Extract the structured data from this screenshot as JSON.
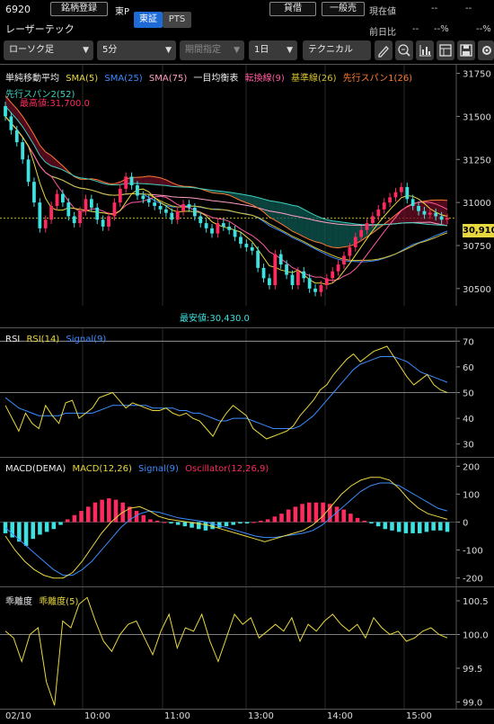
{
  "header": {
    "code": "6920",
    "register_label": "銘柄登録",
    "market_top": "東P",
    "name": "レーザーテック",
    "market_tab_active": "東証",
    "market_tab_other": "PTS",
    "lending_label": "貸借",
    "general_label": "一般売",
    "current_label": "現在値",
    "current_value": "--",
    "current_value2": "--",
    "change_label": "前日比",
    "change_value": "--",
    "change_pct": "--%",
    "change_pct2": "--%"
  },
  "toolbar": {
    "chart_type": "ローソク足",
    "interval": "5分",
    "period_placeholder": "期間指定",
    "range": "1日",
    "technical": "テクニカル"
  },
  "colors": {
    "up": "#ff2b5e",
    "down": "#3ee0e0",
    "sma5": "#e8d840",
    "sma25": "#3c8cff",
    "sma75": "#ff9fc4",
    "tenkan": "#ff5aa0",
    "kijun": "#d4c030",
    "spanA": "#ff7a30",
    "spanB": "#40d0c0",
    "cloud_bull": "#6b0e26",
    "cloud_bear": "#0e5a52",
    "rsi": "#e8d840",
    "signal": "#3c8cff",
    "osc_pos": "#ff2b5e",
    "osc_neg": "#3ee0e0"
  },
  "main_panel": {
    "legend": {
      "title": "単純移動平均",
      "sma5": "SMA(5)",
      "sma25": "SMA(25)",
      "sma75": "SMA(75)",
      "ichimoku": "一目均衡表",
      "tenkan": "転換線(9)",
      "kijun": "基準線(26)",
      "spanA": "先行スパン1(26)",
      "spanB": "先行スパン2(52)"
    },
    "high_label": "最高値:31,700.0",
    "low_label": "最安値:30,430.0",
    "last_price": "30,910",
    "y_ticks": [
      "31750",
      "31500",
      "31250",
      "31000",
      "30750",
      "30500"
    ]
  },
  "rsi_panel": {
    "title": "RSI",
    "rsi": "RSI(14)",
    "signal": "Signal(9)",
    "y_ticks": [
      "70",
      "60",
      "50",
      "40",
      "30"
    ]
  },
  "macd_panel": {
    "title": "MACD(DEMA)",
    "macd": "MACD(12,26)",
    "signal": "Signal(9)",
    "osc": "Oscillator(12,26,9)",
    "y_ticks": [
      "200",
      "100",
      "0",
      "-100",
      "-200"
    ]
  },
  "dev_panel": {
    "title": "乖離度",
    "line": "乖離度(5)",
    "y_ticks": [
      "100.5",
      "100.0",
      "99.5",
      "99.0"
    ]
  },
  "x_axis": {
    "labels": [
      "02/10",
      "10:00",
      "11:00",
      "13:00",
      "14:00",
      "15:00"
    ]
  },
  "chart_data": [
    {
      "type": "candlestick",
      "title": "",
      "indicators": [
        "SMA(5)",
        "SMA(25)",
        "SMA(75)",
        "一目均衡表"
      ],
      "x_labels": [
        "02/10",
        "10:00",
        "11:00",
        "13:00",
        "14:00",
        "15:00"
      ],
      "ylim": [
        30400,
        31800
      ],
      "high": 31700,
      "low": 30430,
      "last": 30910,
      "close": [
        31500,
        31420,
        31350,
        31250,
        31120,
        31000,
        30850,
        30900,
        30980,
        31050,
        31000,
        30920,
        30880,
        30950,
        31020,
        30970,
        30900,
        30860,
        30920,
        31000,
        31080,
        31150,
        31100,
        31040,
        31020,
        31000,
        30980,
        30960,
        30940,
        30900,
        30950,
        30990,
        30970,
        30920,
        30880,
        30850,
        30820,
        30880,
        30860,
        30840,
        30800,
        30760,
        30740,
        30720,
        30620,
        30560,
        30520,
        30700,
        30640,
        30580,
        30520,
        30600,
        30560,
        30500,
        30480,
        30520,
        30560,
        30600,
        30640,
        30690,
        30740,
        30800,
        30840,
        30880,
        30920,
        30960,
        31000,
        31030,
        31060,
        31090,
        31020,
        30980,
        30950,
        30930,
        30940,
        30920,
        30900,
        30910
      ]
    },
    {
      "type": "line",
      "title": "",
      "series": [
        {
          "name": "RSI(14)"
        },
        {
          "name": "Signal(9)"
        }
      ],
      "ylim": [
        25,
        75
      ],
      "reference_lines": [
        70,
        50
      ],
      "rsi": [
        45,
        40,
        35,
        42,
        38,
        36,
        45,
        41,
        38,
        46,
        47,
        40,
        42,
        44,
        48,
        49,
        50,
        47,
        44,
        46,
        45,
        44,
        43,
        43,
        44,
        42,
        41,
        42,
        40,
        39,
        36,
        33,
        38,
        42,
        45,
        43,
        41,
        36,
        34,
        32,
        33,
        34,
        35,
        37,
        41,
        44,
        47,
        51,
        53,
        57,
        60,
        63,
        65,
        62,
        64,
        66,
        67,
        68,
        64,
        60,
        56,
        53,
        55,
        57,
        53,
        51,
        50
      ],
      "signal": [
        48,
        46,
        44,
        43,
        42,
        41,
        41,
        41,
        41,
        42,
        42,
        42,
        42,
        42,
        43,
        44,
        45,
        45,
        45,
        45,
        45,
        45,
        44,
        44,
        44,
        44,
        43,
        43,
        42,
        42,
        41,
        40,
        39,
        39,
        40,
        40,
        40,
        39,
        38,
        37,
        36,
        36,
        36,
        36,
        37,
        39,
        41,
        44,
        47,
        50,
        53,
        56,
        59,
        61,
        62,
        63,
        64,
        64,
        64,
        63,
        62,
        60,
        58,
        57,
        56,
        55,
        54
      ]
    },
    {
      "type": "bar",
      "title": "",
      "series": [
        {
          "name": "MACD(12,26)"
        },
        {
          "name": "Signal(9)"
        },
        {
          "name": "Oscillator(12,26,9)"
        }
      ],
      "ylim": [
        -230,
        230
      ],
      "oscillator": [
        -40,
        -55,
        -70,
        -85,
        -60,
        -45,
        -35,
        -25,
        -10,
        10,
        25,
        40,
        55,
        70,
        80,
        85,
        80,
        70,
        55,
        40,
        25,
        10,
        5,
        0,
        -5,
        -10,
        -15,
        -20,
        -25,
        -30,
        -25,
        -20,
        -15,
        -10,
        -5,
        -5,
        0,
        5,
        10,
        20,
        30,
        45,
        55,
        65,
        70,
        70,
        70,
        65,
        55,
        45,
        30,
        15,
        5,
        -5,
        -15,
        -25,
        -30,
        -35,
        -40,
        -40,
        -40,
        -35,
        -30,
        -30,
        -35
      ],
      "macd": [
        -50,
        -100,
        -140,
        -170,
        -190,
        -200,
        -200,
        -180,
        -140,
        -90,
        -40,
        0,
        30,
        50,
        55,
        40,
        20,
        10,
        5,
        0,
        -5,
        -10,
        -20,
        -30,
        -40,
        -50,
        -60,
        -70,
        -60,
        -50,
        -40,
        -30,
        -10,
        20,
        60,
        100,
        130,
        150,
        160,
        160,
        150,
        120,
        80,
        50,
        30,
        20,
        10
      ],
      "signal": [
        -20,
        -50,
        -80,
        -110,
        -140,
        -170,
        -190,
        -190,
        -170,
        -140,
        -100,
        -60,
        -20,
        10,
        30,
        40,
        35,
        25,
        15,
        10,
        5,
        0,
        -10,
        -20,
        -30,
        -40,
        -50,
        -55,
        -55,
        -50,
        -45,
        -40,
        -30,
        -10,
        20,
        50,
        80,
        110,
        130,
        140,
        140,
        130,
        110,
        90,
        70,
        50,
        40
      ]
    },
    {
      "type": "line",
      "title": "",
      "series": [
        {
          "name": "乖離度(5)"
        }
      ],
      "ylim": [
        98.9,
        100.7
      ],
      "reference_lines": [
        100.0
      ],
      "values": [
        100.05,
        99.95,
        99.6,
        100.0,
        100.1,
        99.3,
        98.95,
        100.2,
        100.1,
        100.45,
        100.55,
        100.2,
        99.9,
        99.75,
        100.0,
        100.15,
        100.2,
        99.95,
        99.7,
        100.05,
        100.3,
        99.8,
        100.1,
        100.05,
        100.3,
        99.9,
        99.6,
        99.95,
        100.3,
        100.15,
        100.25,
        99.95,
        100.05,
        100.15,
        100.05,
        100.25,
        99.9,
        100.15,
        100.05,
        100.2,
        100.3,
        100.15,
        100.05,
        100.15,
        99.95,
        100.25,
        100.1,
        100.0,
        100.05,
        99.9,
        99.95,
        100.05,
        100.1,
        100.0,
        99.95
      ]
    }
  ]
}
